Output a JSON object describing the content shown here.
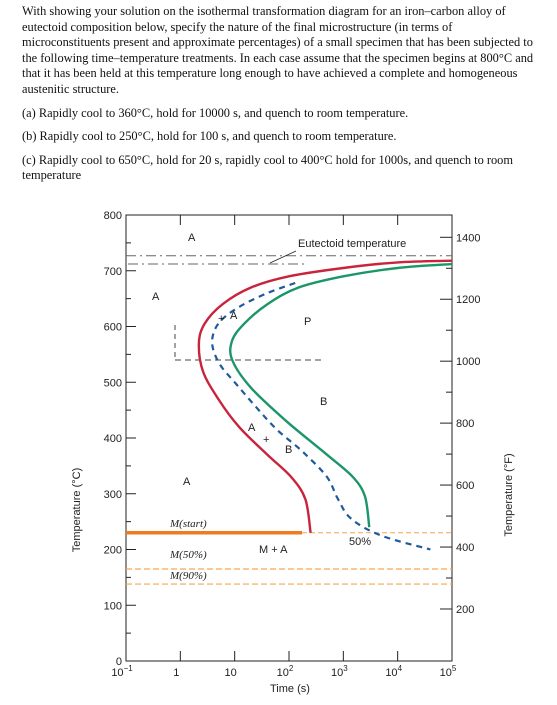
{
  "problem": {
    "intro": "With showing your solution on the isothermal transformation diagram for an iron–carbon alloy of eutectoid composition below, specify the nature of the final microstructure (in terms of microconstituents present and approximate percentages) of a small specimen that has been subjected to the following time–temperature treatments. In each case assume that the specimen begins at 800°C and that it has been held at this temperature long enough to have achieved a complete and homogeneous austenitic structure.",
    "part_a": "(a) Rapidly cool to 360°C, hold for 10000 s, and quench to room temperature.",
    "part_b": "(b) Rapidly cool to 250°C, hold for 100 s, and quench to room temperature.",
    "part_c": "(c) Rapidly cool to 650°C, hold for 20 s, rapidly cool to 400°C hold for 1000s, and quench to room temperature"
  },
  "chart_data": {
    "type": "line",
    "xlabel": "Time (s)",
    "ylabel_left": "Temperature (°C)",
    "ylabel_right": "Temperature (°F)",
    "x_scale": "log",
    "xlim": [
      0.1,
      100000
    ],
    "ylim_c": [
      0,
      800
    ],
    "x_ticks": [
      {
        "value": 0.1,
        "base": "10",
        "exp": "−1"
      },
      {
        "value": 1,
        "base": "1",
        "exp": ""
      },
      {
        "value": 10,
        "base": "10",
        "exp": ""
      },
      {
        "value": 100,
        "base": "10",
        "exp": "2"
      },
      {
        "value": 1000,
        "base": "10",
        "exp": "3"
      },
      {
        "value": 10000,
        "base": "10",
        "exp": "4"
      },
      {
        "value": 100000,
        "base": "10",
        "exp": "5"
      }
    ],
    "y_ticks_c": [
      "0",
      "100",
      "200",
      "300",
      "400",
      "500",
      "600",
      "700",
      "800"
    ],
    "y_ticks_f": [
      {
        "label": "200",
        "value_c": 93.3
      },
      {
        "label": "400",
        "value_c": 204.4
      },
      {
        "label": "600",
        "value_c": 315.6
      },
      {
        "label": "800",
        "value_c": 426.7
      },
      {
        "label": "1000",
        "value_c": 537.8
      },
      {
        "label": "1200",
        "value_c": 648.9
      },
      {
        "label": "1400",
        "value_c": 760
      }
    ],
    "eutectoid_label": "Eutectoid temperature",
    "eutectoid_temp_c": 727,
    "series": [
      {
        "role": "start",
        "color": "#c8243c",
        "points": [
          [
            100000,
            718
          ],
          [
            10000,
            715
          ],
          [
            1000,
            705
          ],
          [
            100,
            690
          ],
          [
            20,
            670
          ],
          [
            6,
            640
          ],
          [
            2.8,
            605
          ],
          [
            2.2,
            570
          ],
          [
            2.6,
            520
          ],
          [
            5,
            470
          ],
          [
            12,
            420
          ],
          [
            40,
            370
          ],
          [
            110,
            330
          ],
          [
            200,
            290
          ],
          [
            250,
            230
          ]
        ]
      },
      {
        "role": "finish",
        "color": "#1b9668",
        "points": [
          [
            100000,
            712
          ],
          [
            10000,
            705
          ],
          [
            1000,
            690
          ],
          [
            150,
            670
          ],
          [
            40,
            640
          ],
          [
            15,
            605
          ],
          [
            9,
            575
          ],
          [
            9,
            540
          ],
          [
            20,
            490
          ],
          [
            90,
            430
          ],
          [
            500,
            370
          ],
          [
            1500,
            330
          ],
          [
            2500,
            295
          ],
          [
            3000,
            240
          ]
        ]
      },
      {
        "role": "50%",
        "color": "#1f5a9c",
        "dashed": true,
        "points": [
          [
            130,
            678
          ],
          [
            40,
            660
          ],
          [
            12,
            635
          ],
          [
            5.5,
            610
          ],
          [
            4,
            585
          ],
          [
            4,
            560
          ],
          [
            5.5,
            530
          ],
          [
            10,
            500
          ],
          [
            25,
            455
          ],
          [
            60,
            415
          ],
          [
            180,
            375
          ],
          [
            500,
            330
          ],
          [
            800,
            290
          ],
          [
            1400,
            255
          ],
          [
            5000,
            225
          ],
          [
            40000,
            200
          ]
        ]
      }
    ],
    "ms_start_c": 230,
    "m50_c": 165,
    "m90_c": 138,
    "ms_color": "#f07a1e",
    "m_lines_color": "#f6a64d",
    "dash_dot_color": "#666666",
    "region_labels": [
      "A",
      "A",
      "P",
      "A",
      "A",
      "B",
      "B",
      "A",
      "M(start)",
      "M + A",
      "50%",
      "M(50%)",
      "M(90%)"
    ]
  }
}
